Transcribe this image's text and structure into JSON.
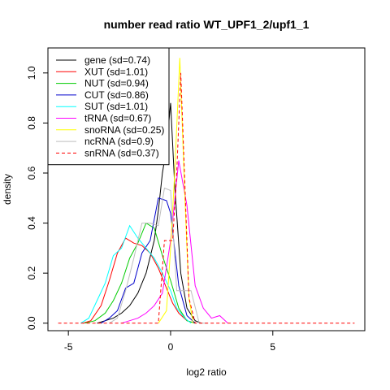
{
  "chart_data": {
    "type": "line",
    "title": "number read ratio WT_UPF1_2/upf1_1",
    "xlabel": "log2 ratio",
    "ylabel": "density",
    "xlim": [
      -6.0,
      9.5
    ],
    "ylim": [
      -0.03,
      1.1
    ],
    "xticks": [
      -5,
      0,
      5
    ],
    "yticks": [
      0.0,
      0.2,
      0.4,
      0.6,
      0.8,
      1.0
    ],
    "legend_position": "top-left",
    "series": [
      {
        "name": "gene (sd=0.74)",
        "color": "#000000",
        "dash": "solid",
        "x": [
          -3.6,
          -3.2,
          -2.8,
          -2.4,
          -2.0,
          -1.6,
          -1.2,
          -0.8,
          -0.6,
          -0.4,
          -0.2,
          0.0,
          0.2,
          0.5,
          0.8,
          1.2,
          1.5
        ],
        "y": [
          0.0,
          0.01,
          0.02,
          0.04,
          0.07,
          0.12,
          0.2,
          0.33,
          0.45,
          0.6,
          0.7,
          0.88,
          0.55,
          0.2,
          0.06,
          0.01,
          0.0
        ]
      },
      {
        "name": "XUT (sd=1.01)",
        "color": "#ff0000",
        "dash": "solid",
        "x": [
          -4.3,
          -3.9,
          -3.4,
          -3.0,
          -2.6,
          -2.2,
          -1.8,
          -1.4,
          -1.0,
          -0.6,
          -0.2,
          0.1,
          0.4,
          0.8,
          1.2
        ],
        "y": [
          0.0,
          0.01,
          0.07,
          0.17,
          0.28,
          0.34,
          0.32,
          0.31,
          0.28,
          0.22,
          0.14,
          0.08,
          0.04,
          0.01,
          0.0
        ]
      },
      {
        "name": "NUT (sd=0.94)",
        "color": "#00cc00",
        "dash": "solid",
        "x": [
          -4.2,
          -3.7,
          -3.2,
          -2.8,
          -2.4,
          -2.0,
          -1.6,
          -1.2,
          -0.8,
          -0.4,
          0.0,
          0.4,
          0.8,
          1.2
        ],
        "y": [
          0.0,
          0.01,
          0.04,
          0.09,
          0.16,
          0.26,
          0.32,
          0.4,
          0.38,
          0.27,
          0.17,
          0.06,
          0.01,
          0.0
        ]
      },
      {
        "name": "CUT (sd=0.86)",
        "color": "#0000cc",
        "dash": "solid",
        "x": [
          -3.4,
          -3.0,
          -2.6,
          -2.2,
          -1.8,
          -1.4,
          -1.0,
          -0.6,
          -0.2,
          0.0,
          0.4,
          0.8,
          1.2
        ],
        "y": [
          0.0,
          0.02,
          0.05,
          0.14,
          0.16,
          0.28,
          0.33,
          0.5,
          0.49,
          0.44,
          0.15,
          0.03,
          0.0
        ]
      },
      {
        "name": "SUT (sd=1.01)",
        "color": "#00ffff",
        "dash": "solid",
        "x": [
          -4.4,
          -4.0,
          -3.6,
          -3.2,
          -2.8,
          -2.4,
          -2.0,
          -1.6,
          -1.2,
          -0.8,
          -0.4,
          0.0,
          0.3,
          0.7,
          1.0
        ],
        "y": [
          0.0,
          0.02,
          0.09,
          0.16,
          0.27,
          0.3,
          0.39,
          0.34,
          0.3,
          0.26,
          0.2,
          0.13,
          0.06,
          0.02,
          0.0
        ]
      },
      {
        "name": "tRNA (sd=0.67)",
        "color": "#ff00ff",
        "dash": "solid",
        "x": [
          -2.4,
          -2.0,
          -1.6,
          -1.2,
          -0.8,
          -0.4,
          0.0,
          0.4,
          0.8,
          1.2,
          1.6,
          2.0,
          2.4,
          2.8
        ],
        "y": [
          0.0,
          0.01,
          0.02,
          0.04,
          0.07,
          0.12,
          0.33,
          0.65,
          0.47,
          0.15,
          0.06,
          0.02,
          0.03,
          0.0
        ]
      },
      {
        "name": "snoRNA (sd=0.25)",
        "color": "#ffff00",
        "dash": "solid",
        "x": [
          -0.6,
          -0.2,
          0.0,
          0.2,
          0.45,
          0.7,
          0.9,
          1.1
        ],
        "y": [
          0.0,
          0.05,
          0.3,
          0.6,
          1.06,
          0.5,
          0.1,
          0.0
        ]
      },
      {
        "name": "ncRNA (sd=0.9)",
        "color": "#bebebe",
        "dash": "solid",
        "x": [
          -3.0,
          -2.6,
          -2.2,
          -1.8,
          -1.4,
          -1.0,
          -0.6,
          -0.3,
          0.0,
          0.3,
          0.6,
          1.0,
          1.4,
          1.8
        ],
        "y": [
          0.0,
          0.02,
          0.13,
          0.26,
          0.4,
          0.4,
          0.39,
          0.54,
          0.53,
          0.13,
          0.13,
          0.13,
          0.0,
          0.0
        ]
      },
      {
        "name": "snRNA (sd=0.37)",
        "color": "#ff0000",
        "dash": "dashed",
        "x": [
          -5.5,
          -1.2,
          -0.9,
          -0.6,
          -0.3,
          -0.1,
          0.1,
          0.3,
          0.5,
          0.7,
          0.9,
          1.2,
          9.0
        ],
        "y": [
          0.0,
          0.0,
          0.0,
          0.0,
          0.33,
          0.33,
          0.33,
          0.6,
          1.0,
          0.55,
          0.1,
          0.0,
          0.0
        ]
      }
    ]
  }
}
